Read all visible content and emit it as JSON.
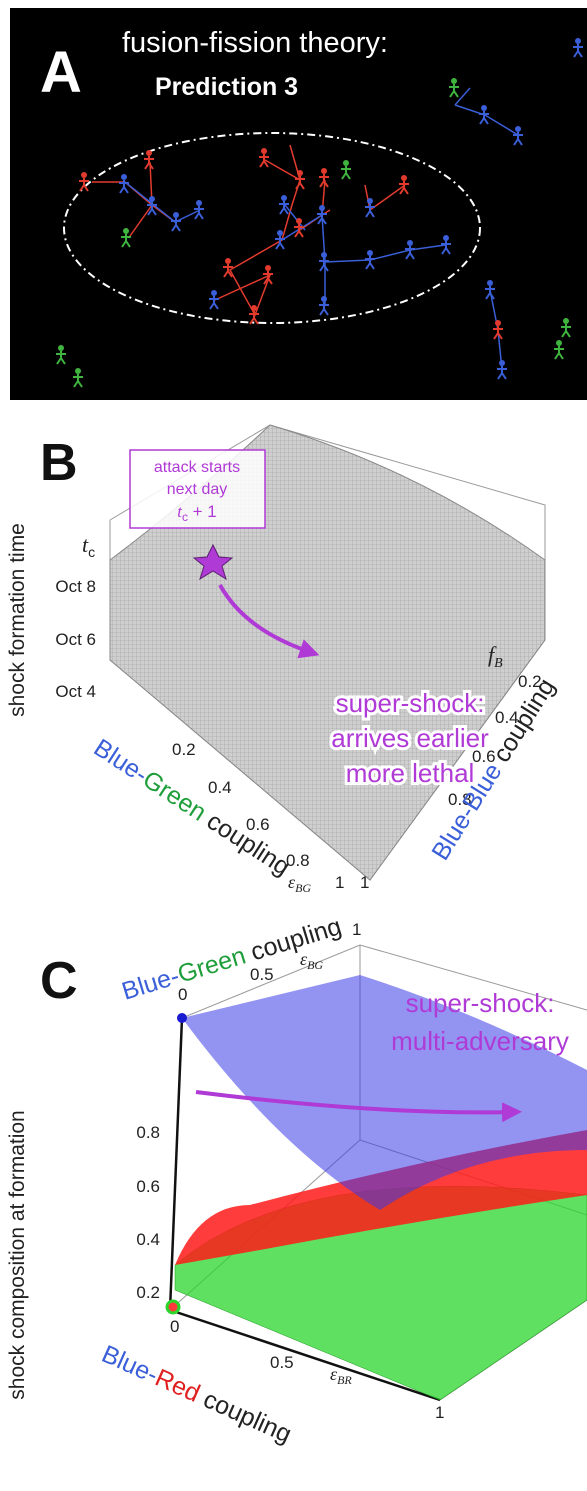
{
  "panels": [
    {
      "label": "A",
      "title": "fusion-fission theory:",
      "subtitle": "Prediction 3"
    },
    {
      "label": "B",
      "callout": [
        "attack starts",
        "next day"
      ],
      "callout_symbol": {
        "base": "t",
        "sub": "c",
        "rest": " + 1"
      },
      "annotation": [
        "super-shock:",
        "arrives earlier",
        "more lethal"
      ],
      "z_axis": "shock formation time",
      "z_symbol": {
        "base": "t",
        "sub": "c"
      },
      "z_ticks": [
        "Oct 8",
        "Oct 6",
        "Oct 4"
      ],
      "x_axis": {
        "part1": "Blue-",
        "part2": "Green",
        "part3": " coupling"
      },
      "x_symbol": {
        "base": "ε",
        "sub": "BG"
      },
      "x_ticks": [
        0.2,
        0.4,
        0.6,
        0.8,
        1
      ],
      "y_axis": {
        "part1": "Blue-Blue",
        "part2": " coupling"
      },
      "y_symbol": {
        "base": "f",
        "sub": "B"
      },
      "y_ticks": [
        0.2,
        0.4,
        0.6,
        0.8,
        1
      ]
    },
    {
      "label": "C",
      "annotation": [
        "super-shock:",
        "multi-adversary"
      ],
      "top_axis": {
        "part1": "Blue-",
        "part2": "Green",
        "part3": " coupling"
      },
      "top_symbol": {
        "base": "ε",
        "sub": "BG"
      },
      "top_ticks": [
        0,
        0.5,
        1
      ],
      "z_axis": "shock composition at formation",
      "z_ticks": [
        0.8,
        0.6,
        0.4,
        0.2
      ],
      "x_axis": {
        "part1": "Blue-",
        "part2": "Red",
        "part3": " coupling"
      },
      "x_symbol": {
        "base": "ε",
        "sub": "BR"
      },
      "x_ticks": [
        0,
        0.5,
        1
      ]
    }
  ]
}
